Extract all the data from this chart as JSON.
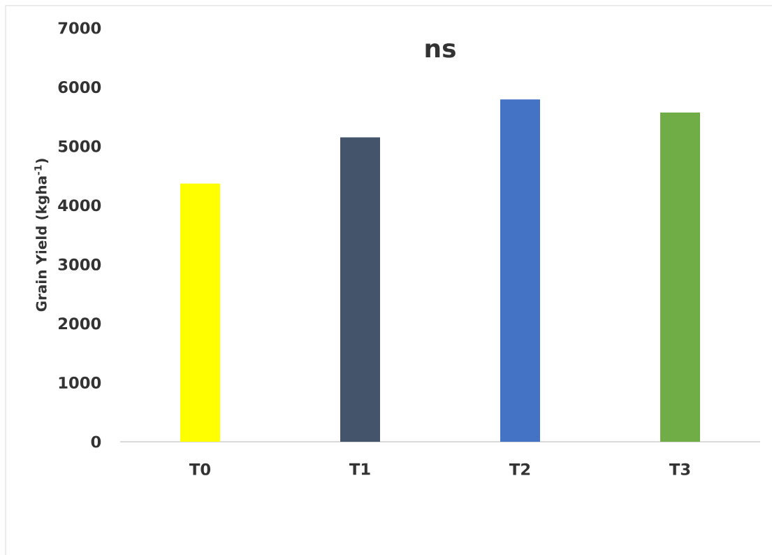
{
  "chart_data": {
    "type": "bar",
    "title": "ns",
    "ylabel": "Grain Yield (kgha$^{-1}$)",
    "categories": [
      "T0",
      "T1",
      "T2",
      "T3"
    ],
    "values": [
      4370,
      5150,
      5790,
      5570
    ],
    "colors": [
      "#ffff00",
      "#44546a",
      "#4472c4",
      "#70ad47"
    ],
    "ylim": [
      0,
      7000
    ],
    "yticks": [
      0,
      1000,
      2000,
      3000,
      4000,
      5000,
      6000,
      7000
    ],
    "grid": false
  }
}
